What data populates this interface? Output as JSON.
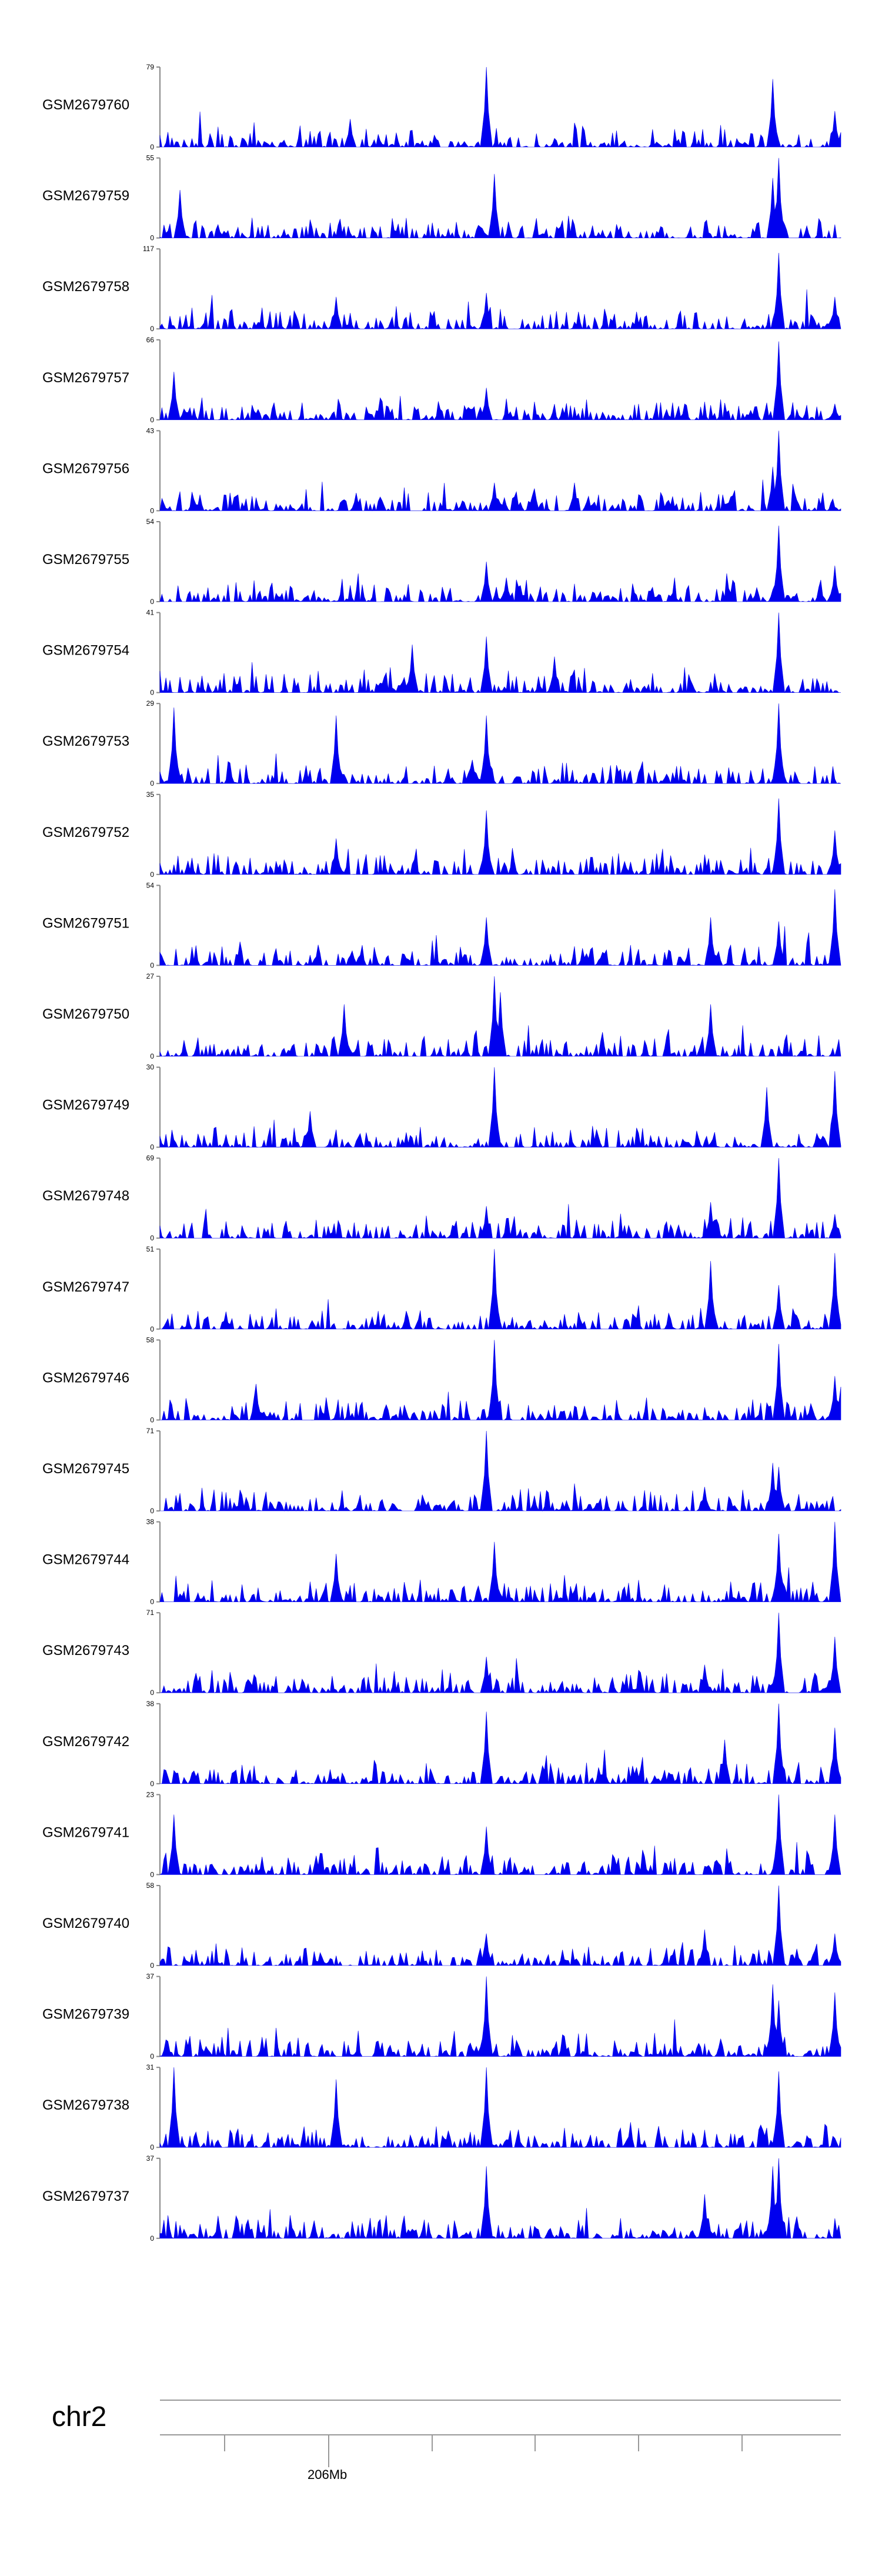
{
  "chart_data": {
    "type": "area",
    "description": "Genome browser coverage tracks",
    "color": "#0000ee",
    "axis_color": "#888888",
    "tracks": [
      {
        "name": "GSM2679760",
        "max": 79,
        "spikes": [
          [
            0.48,
            1.0
          ],
          [
            0.28,
            0.35
          ],
          [
            0.9,
            0.85
          ],
          [
            0.99,
            0.45
          ]
        ]
      },
      {
        "name": "GSM2679759",
        "max": 55,
        "spikes": [
          [
            0.49,
            0.8
          ],
          [
            0.91,
            1.0
          ],
          [
            0.9,
            0.75
          ],
          [
            0.03,
            0.6
          ]
        ]
      },
      {
        "name": "GSM2679758",
        "max": 117,
        "spikes": [
          [
            0.48,
            0.45
          ],
          [
            0.91,
            0.95
          ],
          [
            0.26,
            0.4
          ],
          [
            0.99,
            0.4
          ]
        ]
      },
      {
        "name": "GSM2679757",
        "max": 66,
        "spikes": [
          [
            0.48,
            0.4
          ],
          [
            0.91,
            0.98
          ],
          [
            0.02,
            0.6
          ],
          [
            0.99,
            0.2
          ]
        ]
      },
      {
        "name": "GSM2679756",
        "max": 43,
        "spikes": [
          [
            0.91,
            1.0
          ],
          [
            0.49,
            0.35
          ],
          [
            0.9,
            0.55
          ],
          [
            0.61,
            0.35
          ]
        ]
      },
      {
        "name": "GSM2679755",
        "max": 54,
        "spikes": [
          [
            0.48,
            0.5
          ],
          [
            0.91,
            0.95
          ],
          [
            0.99,
            0.45
          ],
          [
            0.51,
            0.3
          ]
        ]
      },
      {
        "name": "GSM2679754",
        "max": 41,
        "spikes": [
          [
            0.48,
            0.7
          ],
          [
            0.91,
            1.0
          ],
          [
            0.58,
            0.45
          ],
          [
            0.37,
            0.6
          ]
        ]
      },
      {
        "name": "GSM2679753",
        "max": 29,
        "spikes": [
          [
            0.48,
            0.85
          ],
          [
            0.91,
            1.0
          ],
          [
            0.02,
            0.95
          ],
          [
            0.26,
            0.85
          ]
        ]
      },
      {
        "name": "GSM2679752",
        "max": 35,
        "spikes": [
          [
            0.48,
            0.8
          ],
          [
            0.91,
            0.95
          ],
          [
            0.99,
            0.55
          ],
          [
            0.26,
            0.45
          ]
        ]
      },
      {
        "name": "GSM2679751",
        "max": 54,
        "spikes": [
          [
            0.48,
            0.6
          ],
          [
            0.91,
            0.55
          ],
          [
            0.99,
            0.95
          ],
          [
            0.81,
            0.6
          ]
        ]
      },
      {
        "name": "GSM2679750",
        "max": 27,
        "spikes": [
          [
            0.49,
            1.0
          ],
          [
            0.5,
            0.8
          ],
          [
            0.27,
            0.65
          ],
          [
            0.81,
            0.65
          ]
        ]
      },
      {
        "name": "GSM2679749",
        "max": 30,
        "spikes": [
          [
            0.49,
            1.0
          ],
          [
            0.99,
            0.95
          ],
          [
            0.89,
            0.75
          ],
          [
            0.22,
            0.45
          ]
        ]
      },
      {
        "name": "GSM2679748",
        "max": 69,
        "spikes": [
          [
            0.91,
            1.0
          ],
          [
            0.48,
            0.4
          ],
          [
            0.81,
            0.45
          ],
          [
            0.99,
            0.3
          ]
        ]
      },
      {
        "name": "GSM2679747",
        "max": 51,
        "spikes": [
          [
            0.49,
            1.0
          ],
          [
            0.91,
            0.55
          ],
          [
            0.81,
            0.85
          ],
          [
            0.99,
            0.95
          ]
        ]
      },
      {
        "name": "GSM2679746",
        "max": 58,
        "spikes": [
          [
            0.49,
            1.0
          ],
          [
            0.91,
            0.95
          ],
          [
            0.99,
            0.55
          ],
          [
            0.14,
            0.45
          ]
        ]
      },
      {
        "name": "GSM2679745",
        "max": 71,
        "spikes": [
          [
            0.48,
            1.0
          ],
          [
            0.9,
            0.6
          ],
          [
            0.91,
            0.55
          ],
          [
            0.8,
            0.3
          ]
        ]
      },
      {
        "name": "GSM2679744",
        "max": 38,
        "spikes": [
          [
            0.49,
            0.75
          ],
          [
            0.91,
            0.85
          ],
          [
            0.99,
            1.0
          ],
          [
            0.26,
            0.6
          ]
        ]
      },
      {
        "name": "GSM2679743",
        "max": 71,
        "spikes": [
          [
            0.48,
            0.45
          ],
          [
            0.91,
            1.0
          ],
          [
            0.99,
            0.7
          ],
          [
            0.8,
            0.35
          ]
        ]
      },
      {
        "name": "GSM2679742",
        "max": 38,
        "spikes": [
          [
            0.48,
            0.9
          ],
          [
            0.91,
            1.0
          ],
          [
            0.99,
            0.7
          ],
          [
            0.83,
            0.55
          ]
        ]
      },
      {
        "name": "GSM2679741",
        "max": 23,
        "spikes": [
          [
            0.91,
            1.0
          ],
          [
            0.48,
            0.6
          ],
          [
            0.02,
            0.75
          ],
          [
            0.99,
            0.75
          ]
        ]
      },
      {
        "name": "GSM2679740",
        "max": 58,
        "spikes": [
          [
            0.91,
            1.0
          ],
          [
            0.48,
            0.4
          ],
          [
            0.8,
            0.45
          ],
          [
            0.99,
            0.4
          ]
        ]
      },
      {
        "name": "GSM2679739",
        "max": 37,
        "spikes": [
          [
            0.48,
            1.0
          ],
          [
            0.9,
            0.9
          ],
          [
            0.91,
            0.7
          ],
          [
            0.99,
            0.8
          ]
        ]
      },
      {
        "name": "GSM2679738",
        "max": 31,
        "spikes": [
          [
            0.48,
            1.0
          ],
          [
            0.02,
            1.0
          ],
          [
            0.26,
            0.85
          ],
          [
            0.91,
            0.95
          ]
        ]
      },
      {
        "name": "GSM2679737",
        "max": 37,
        "spikes": [
          [
            0.48,
            0.9
          ],
          [
            0.91,
            1.0
          ],
          [
            0.9,
            0.9
          ],
          [
            0.8,
            0.55
          ]
        ]
      }
    ],
    "chromosome": "chr2",
    "position_label": "206Mb",
    "position_tick_index": 1
  }
}
